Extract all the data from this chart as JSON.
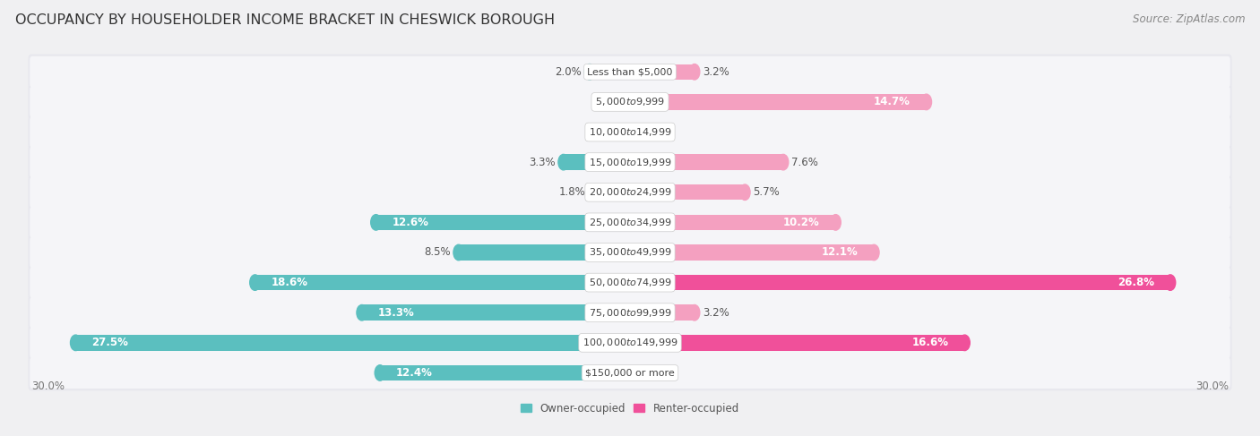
{
  "title": "OCCUPANCY BY HOUSEHOLDER INCOME BRACKET IN CHESWICK BOROUGH",
  "source": "Source: ZipAtlas.com",
  "categories": [
    "Less than $5,000",
    "$5,000 to $9,999",
    "$10,000 to $14,999",
    "$15,000 to $19,999",
    "$20,000 to $24,999",
    "$25,000 to $34,999",
    "$35,000 to $49,999",
    "$50,000 to $74,999",
    "$75,000 to $99,999",
    "$100,000 to $149,999",
    "$150,000 or more"
  ],
  "owner_values": [
    2.0,
    0.0,
    0.0,
    3.3,
    1.8,
    12.6,
    8.5,
    18.6,
    13.3,
    27.5,
    12.4
  ],
  "renter_values": [
    3.2,
    14.7,
    0.0,
    7.6,
    5.7,
    10.2,
    12.1,
    26.8,
    3.2,
    16.6,
    0.0
  ],
  "owner_color": "#5BBFBF",
  "renter_color_large": "#F0509A",
  "renter_color_small": "#F4A0C0",
  "renter_threshold": 15.0,
  "background_color": "#f0f0f2",
  "row_bg_color": "#e8e8ee",
  "row_inner_color": "#f5f5f8",
  "axis_limit": 30.0,
  "legend_owner": "Owner-occupied",
  "legend_renter": "Renter-occupied",
  "title_fontsize": 11.5,
  "source_fontsize": 8.5,
  "label_fontsize": 8.5,
  "category_fontsize": 8.0,
  "bar_height": 0.52,
  "inside_label_threshold": 10.0,
  "label_color_outside": "#555555",
  "label_color_inside": "#ffffff"
}
